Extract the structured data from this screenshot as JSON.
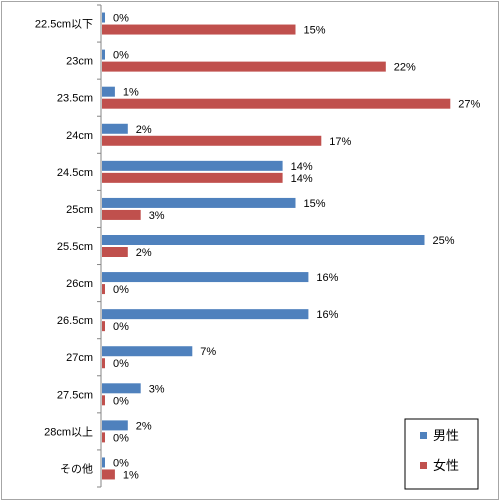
{
  "chart_data": {
    "type": "bar",
    "orientation": "horizontal",
    "title": "",
    "xlabel": "",
    "ylabel": "",
    "xlim": [
      0,
      30
    ],
    "grid": false,
    "legend_position": "bottom-right",
    "value_suffix": "%",
    "categories": [
      "22.5cm以下",
      "23cm",
      "23.5cm",
      "24cm",
      "24.5cm",
      "25cm",
      "25.5cm",
      "26cm",
      "26.5cm",
      "27cm",
      "27.5cm",
      "28cm以上",
      "その他"
    ],
    "series": [
      {
        "name": "男性",
        "color": "#4F81BD",
        "values": [
          0,
          0,
          1,
          2,
          14,
          15,
          25,
          16,
          16,
          7,
          3,
          2,
          0
        ]
      },
      {
        "name": "女性",
        "color": "#C0504D",
        "values": [
          15,
          22,
          27,
          17,
          14,
          3,
          2,
          0,
          0,
          0,
          0,
          0,
          1
        ]
      }
    ]
  }
}
